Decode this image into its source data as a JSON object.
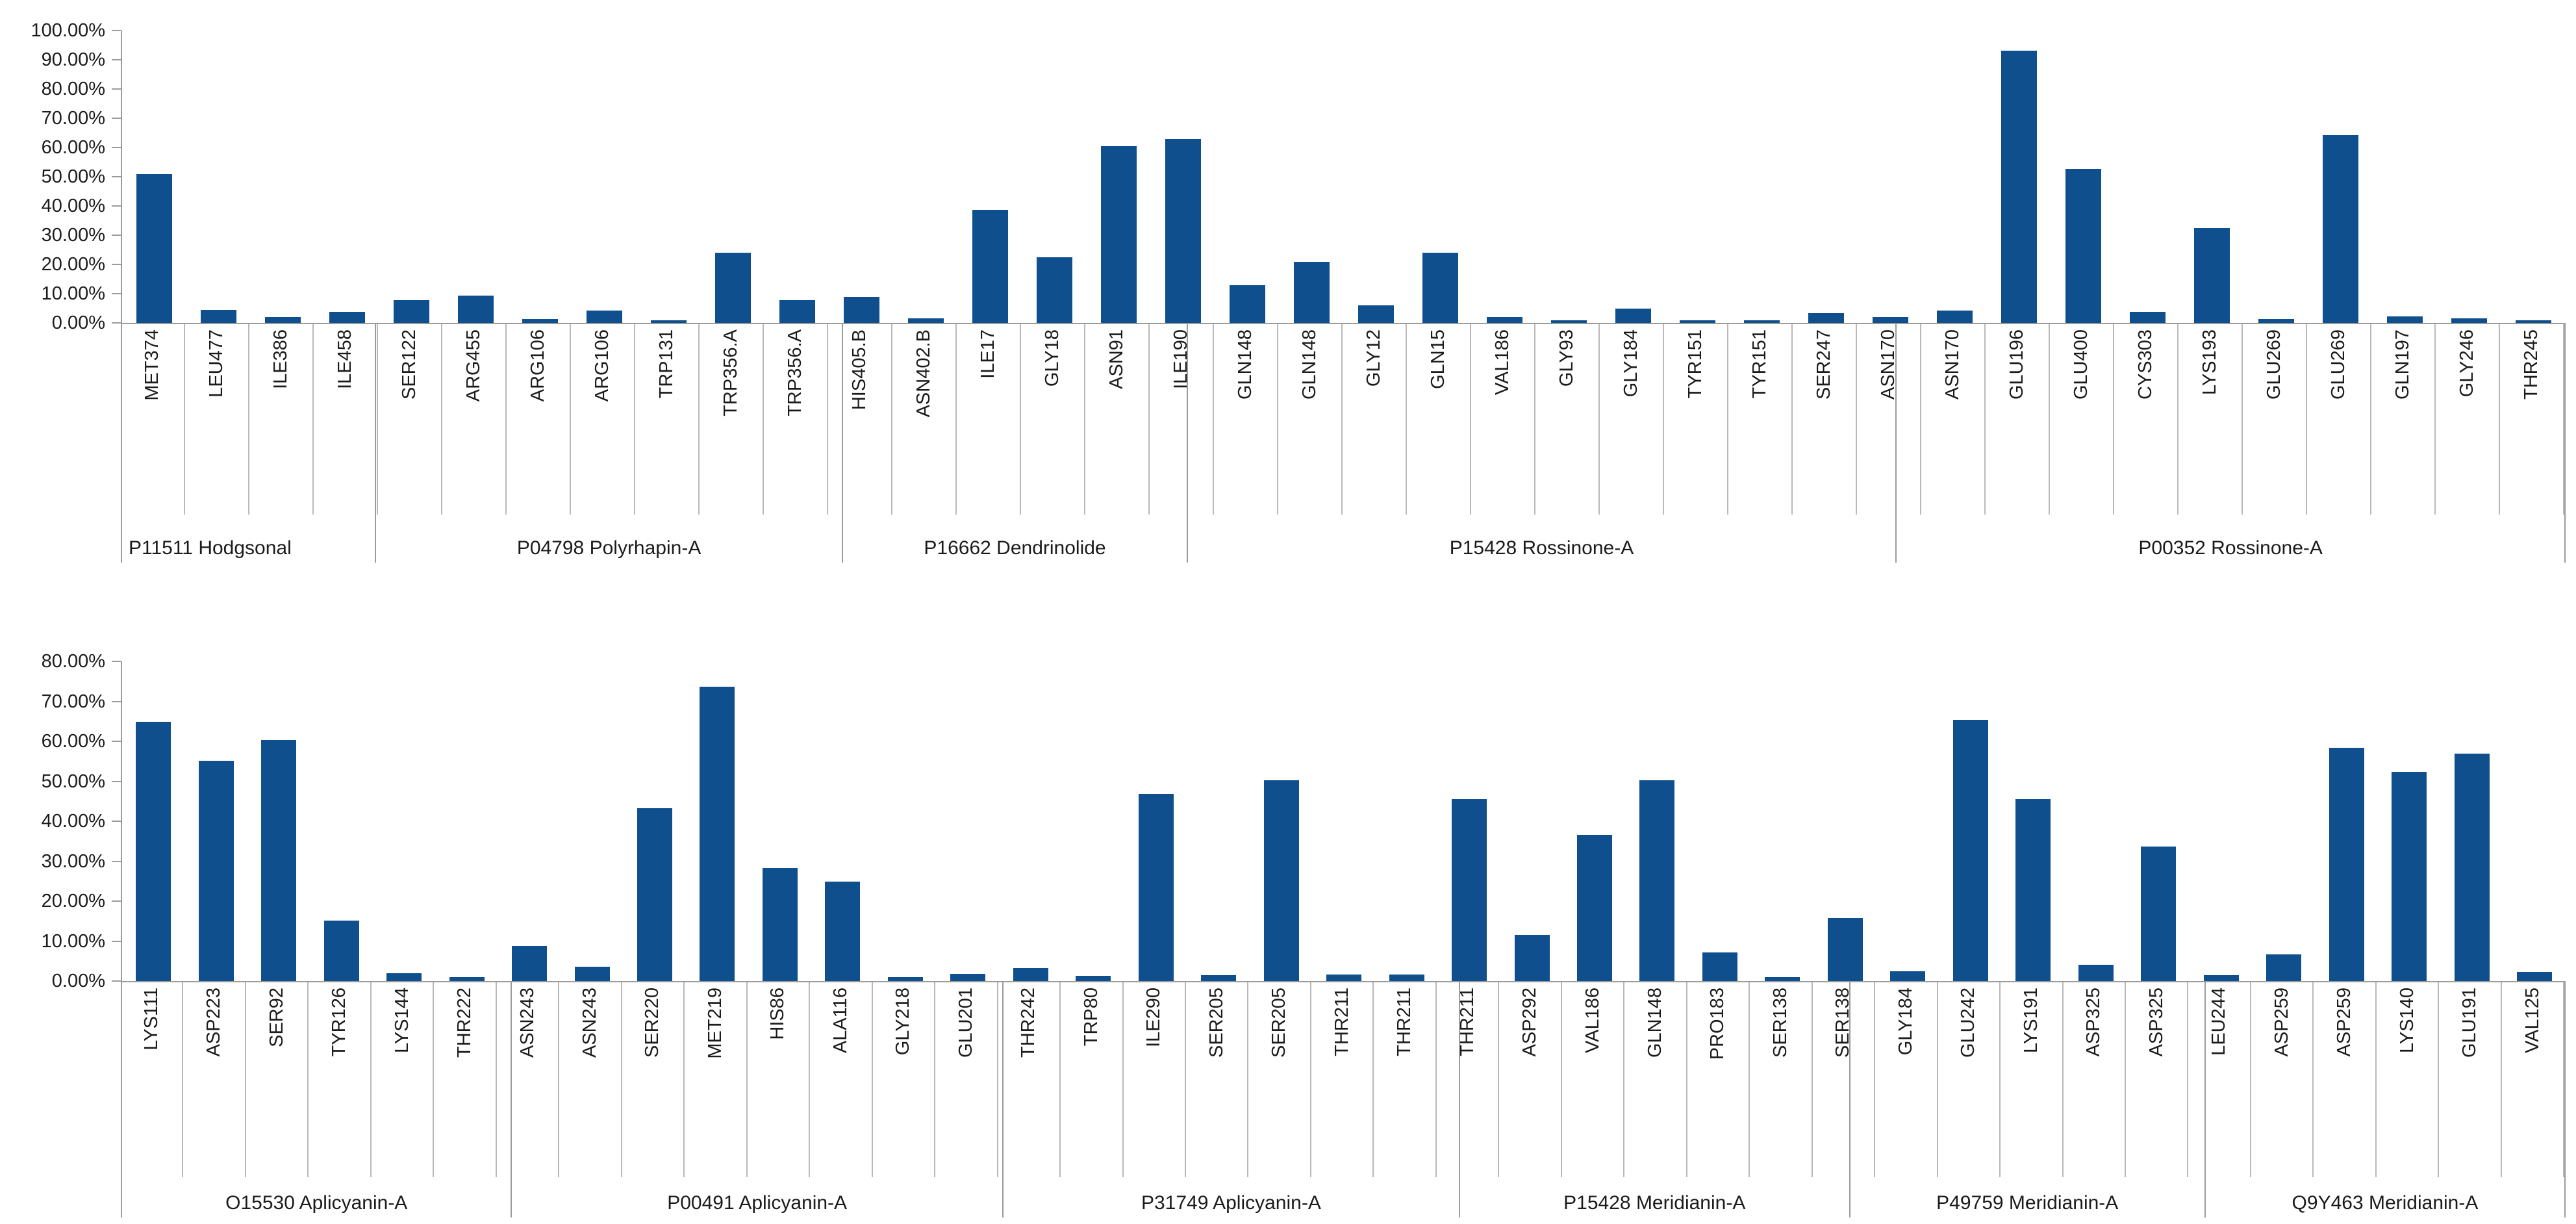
{
  "style": {
    "bar_color": "#0f4f8e",
    "axis_color": "#9b9b9b",
    "separator_color": "#b9b9b9",
    "text_color": "#1b1b1b",
    "background": "#ffffff"
  },
  "chart_data": [
    {
      "type": "bar",
      "title": "",
      "xlabel": "",
      "ylabel": "",
      "ylim": [
        0,
        100
      ],
      "grid": false,
      "legend": false,
      "y_tick_labels": [
        "100.00%",
        "90.00%",
        "80.00%",
        "70.00%",
        "60.00%",
        "50.00%",
        "40.00%",
        "30.00%",
        "20.00%",
        "10.00%",
        "0.00%"
      ],
      "groups": [
        {
          "label": "P11511 Hodgsonal",
          "bars": [
            {
              "label": "MET374",
              "value": 51.0
            },
            {
              "label": "LEU477",
              "value": 4.4
            }
          ]
        },
        {
          "label": "P04798 Polyrhapin-A",
          "bars": [
            {
              "label": "ILE386",
              "value": 2.0
            },
            {
              "label": "ILE458",
              "value": 3.8
            },
            {
              "label": "SER122",
              "value": 7.8
            },
            {
              "label": "ARG455",
              "value": 9.3
            },
            {
              "label": "ARG106",
              "value": 1.4
            },
            {
              "label": "ARG106",
              "value": 4.3
            },
            {
              "label": "TRP131",
              "value": 1.0
            }
          ]
        },
        {
          "label": "P16662 Dendrinolide",
          "bars": [
            {
              "label": "TRP356.A",
              "value": 24.0
            },
            {
              "label": "TRP356.A",
              "value": 7.8
            },
            {
              "label": "HIS405.B",
              "value": 9.0
            },
            {
              "label": "ASN402.B",
              "value": 1.5
            }
          ]
        },
        {
          "label": "P15428 Rossinone-A",
          "bars": [
            {
              "label": "ILE17",
              "value": 38.7
            },
            {
              "label": "GLY18",
              "value": 22.4
            },
            {
              "label": "ASN91",
              "value": 60.4
            },
            {
              "label": "ILE190",
              "value": 62.9
            },
            {
              "label": "GLN148",
              "value": 12.8
            },
            {
              "label": "GLN148",
              "value": 20.9
            },
            {
              "label": "GLY12",
              "value": 5.9
            },
            {
              "label": "GLN15",
              "value": 24.0
            },
            {
              "label": "VAL186",
              "value": 1.9
            },
            {
              "label": "GLY93",
              "value": 1.0
            },
            {
              "label": "GLY184",
              "value": 5.0
            },
            {
              "label": "TYR151",
              "value": 1.0
            },
            {
              "label": "TYR151",
              "value": 0.9
            }
          ]
        },
        {
          "label": "P00352 Rossinone-A",
          "bars": [
            {
              "label": "SER247",
              "value": 3.4
            },
            {
              "label": "ASN170",
              "value": 1.9
            },
            {
              "label": "ASN170",
              "value": 4.3
            },
            {
              "label": "GLU196",
              "value": 93.2
            },
            {
              "label": "GLU400",
              "value": 52.7
            },
            {
              "label": "CYS303",
              "value": 3.8
            },
            {
              "label": "LYS193",
              "value": 32.4
            },
            {
              "label": "GLU269",
              "value": 1.4
            },
            {
              "label": "GLU269",
              "value": 64.2
            },
            {
              "label": "GLN197",
              "value": 2.3
            },
            {
              "label": "GLY246",
              "value": 1.5
            },
            {
              "label": "THR245",
              "value": 1.0
            }
          ]
        }
      ]
    },
    {
      "type": "bar",
      "title": "",
      "xlabel": "",
      "ylabel": "",
      "ylim": [
        0,
        80
      ],
      "grid": false,
      "legend": false,
      "y_tick_labels": [
        "80.00%",
        "70.00%",
        "60.00%",
        "50.00%",
        "40.00%",
        "30.00%",
        "20.00%",
        "10.00%",
        "0.00%"
      ],
      "groups": [
        {
          "label": "O15530 Aplicyanin-A",
          "bars": [
            {
              "label": "LYS111",
              "value": 64.8
            },
            {
              "label": "ASP223",
              "value": 55.2
            },
            {
              "label": "SER92",
              "value": 60.3
            },
            {
              "label": "TYR126",
              "value": 15.2
            },
            {
              "label": "LYS144",
              "value": 2.0
            },
            {
              "label": "THR222",
              "value": 1.0
            }
          ]
        },
        {
          "label": "P00491 Aplicyanin-A",
          "bars": [
            {
              "label": "ASN243",
              "value": 8.8
            },
            {
              "label": "ASN243",
              "value": 3.6
            },
            {
              "label": "SER220",
              "value": 43.3
            },
            {
              "label": "MET219",
              "value": 73.6
            },
            {
              "label": "HIS86",
              "value": 28.3
            },
            {
              "label": "ALA116",
              "value": 24.8
            },
            {
              "label": "GLY218",
              "value": 0.9
            },
            {
              "label": "GLU201",
              "value": 1.8
            },
            {
              "label": "THR242",
              "value": 3.3
            }
          ]
        },
        {
          "label": "P31749 Aplicyanin-A",
          "bars": [
            {
              "label": "TRP80",
              "value": 1.3
            },
            {
              "label": "ILE290",
              "value": 46.8
            },
            {
              "label": "SER205",
              "value": 1.5
            },
            {
              "label": "SER205",
              "value": 50.2
            },
            {
              "label": "THR211",
              "value": 1.6
            },
            {
              "label": "THR211",
              "value": 1.6
            },
            {
              "label": "THR211",
              "value": 45.5
            },
            {
              "label": "ASP292",
              "value": 11.6
            }
          ]
        },
        {
          "label": "P15428 Meridianin-A",
          "bars": [
            {
              "label": "VAL186",
              "value": 36.6
            },
            {
              "label": "GLN148",
              "value": 50.3
            },
            {
              "label": "PRO183",
              "value": 7.2
            },
            {
              "label": "SER138",
              "value": 0.9
            },
            {
              "label": "SER138",
              "value": 15.7
            },
            {
              "label": "GLY184",
              "value": 2.4
            }
          ]
        },
        {
          "label": "P49759 Meridianin-A",
          "bars": [
            {
              "label": "GLU242",
              "value": 65.3
            },
            {
              "label": "LYS191",
              "value": 45.6
            },
            {
              "label": "ASP325",
              "value": 4.0
            },
            {
              "label": "ASP325",
              "value": 33.7
            },
            {
              "label": "LEU244",
              "value": 1.4
            }
          ]
        },
        {
          "label": "Q9Y463 Meridianin-A",
          "bars": [
            {
              "label": "ASP259",
              "value": 6.7
            },
            {
              "label": "ASP259",
              "value": 58.4
            },
            {
              "label": "LYS140",
              "value": 52.4
            },
            {
              "label": "GLU191",
              "value": 56.9
            },
            {
              "label": "VAL125",
              "value": 2.3
            }
          ]
        }
      ]
    }
  ]
}
